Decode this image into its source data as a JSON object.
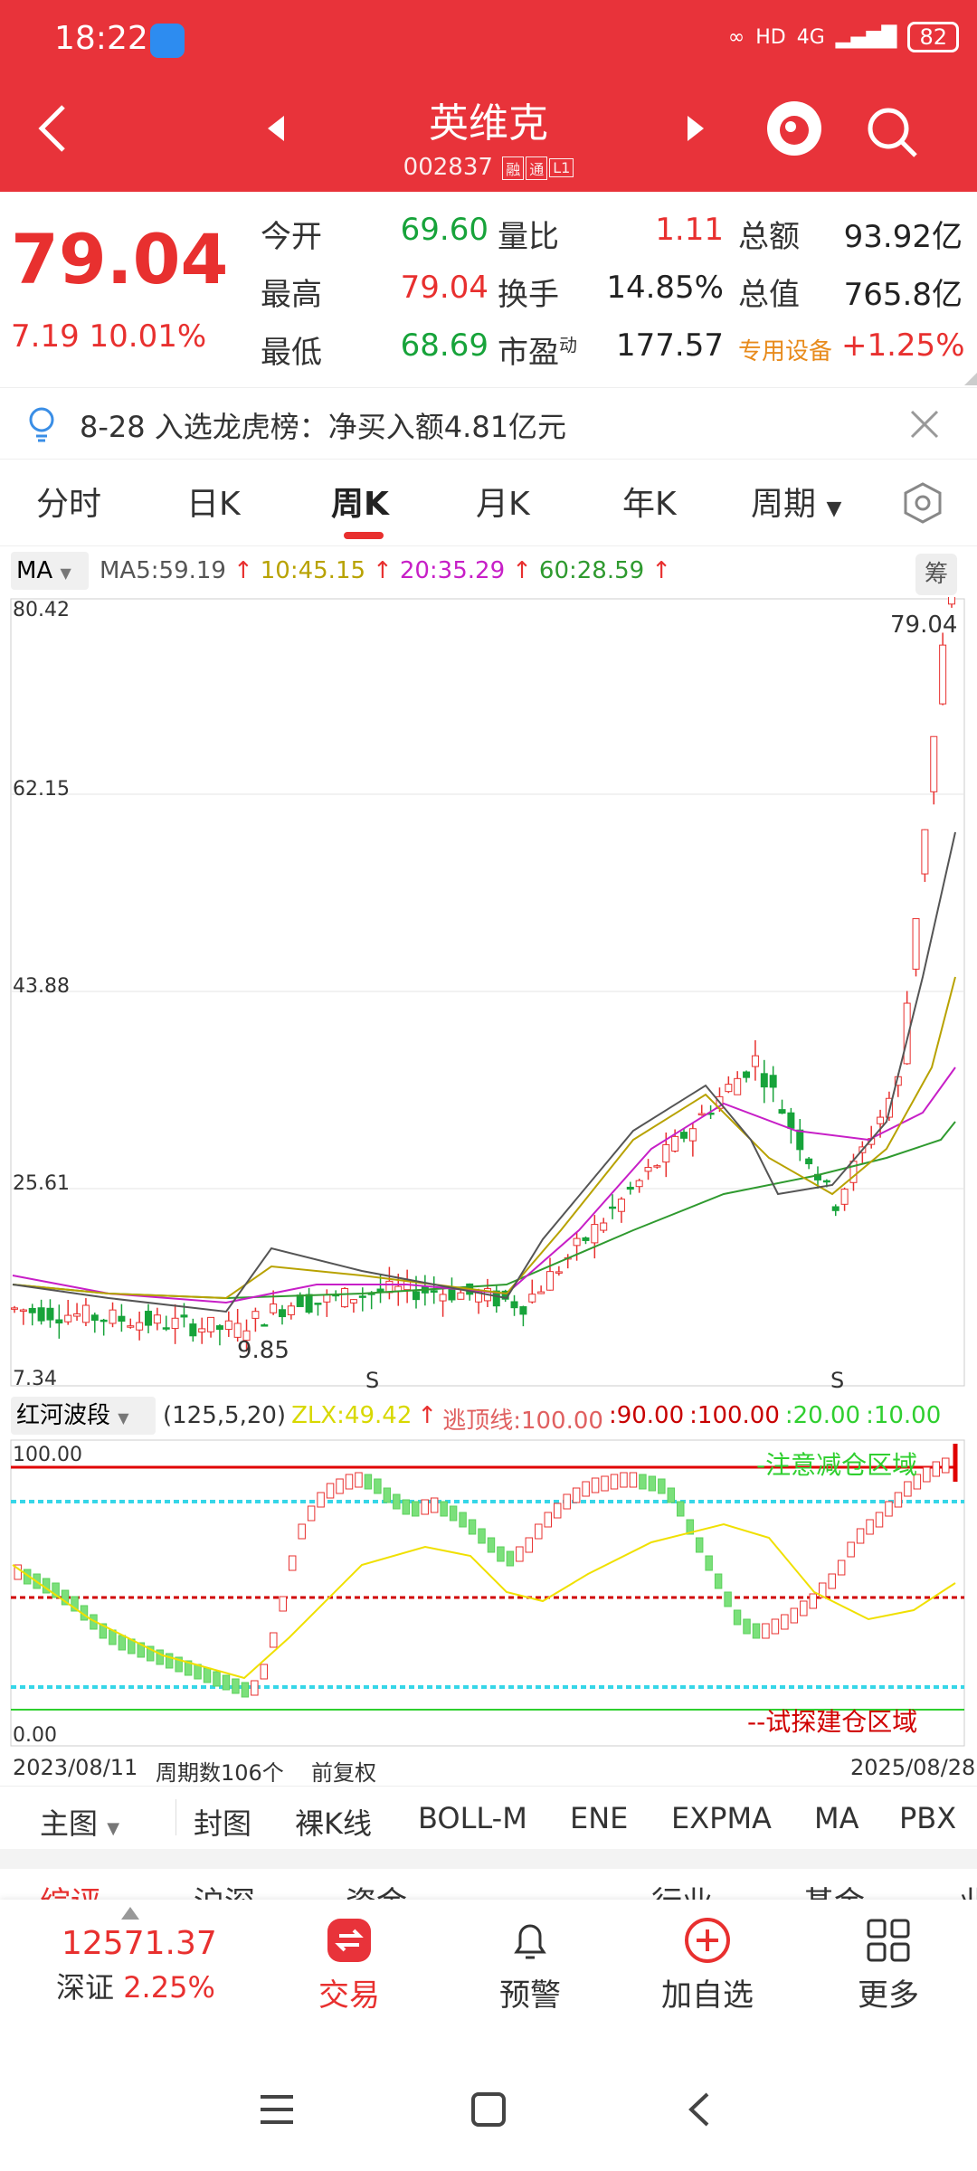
{
  "status": {
    "time": "18:22",
    "network": "4G",
    "battery": "82"
  },
  "header": {
    "stock_name": "英维克",
    "stock_code": "002837",
    "tag1": "融",
    "tag2": "通",
    "tag3": "L1"
  },
  "quote": {
    "price": "79.04",
    "change": "7.19",
    "change_pct": "10.01%",
    "open_label": "今开",
    "open": "69.60",
    "high_label": "最高",
    "high": "79.04",
    "low_label": "最低",
    "low": "68.69",
    "vol_ratio_label": "量比",
    "vol_ratio": "1.11",
    "turnover_label": "换手",
    "turnover": "14.85%",
    "pe_label": "市盈",
    "pe_sup": "动",
    "pe": "177.57",
    "amount_label": "总额",
    "amount": "93.92亿",
    "mktcap_label": "总值",
    "mktcap": "765.8亿",
    "sector": "专用设备",
    "sector_change": "+1.25%"
  },
  "notice": {
    "text": "8-28 入选龙虎榜：净买入额4.81亿元"
  },
  "tabs": [
    "分时",
    "日K",
    "周K",
    "月K",
    "年K",
    "周期"
  ],
  "ma": {
    "select": "MA",
    "ma5": "MA5:59.19",
    "ma10": "10:45.15",
    "ma20": "20:35.29",
    "ma60": "60:28.59",
    "calc": "筹"
  },
  "kline_axis": {
    "y1": "80.42",
    "y2": "62.15",
    "y3": "43.88",
    "y4": "25.61",
    "y5": "7.34",
    "high_label": "79.04",
    "low_label": "9.85",
    "s_mark": "S"
  },
  "chart_data": {
    "type": "candlestick",
    "series": [
      {
        "name": "MA5",
        "values": [
          59.19
        ]
      },
      {
        "name": "10",
        "values": [
          45.15
        ]
      },
      {
        "name": "20",
        "values": [
          35.29
        ]
      },
      {
        "name": "60",
        "values": [
          28.59
        ]
      }
    ],
    "ylim": [
      7.34,
      80.42
    ],
    "last_close": 79.04,
    "period_low": 9.85,
    "x_start": "2023/08/11",
    "x_end": "2025/08/28"
  },
  "indicator": {
    "select": "红河波段",
    "params": "(125,5,20)",
    "zlx": "ZLX:49.42",
    "escape": "逃顶线:100.00",
    "v1": ":90.00",
    "v2": ":100.00",
    "v3": ":20.00",
    "v4": ":10.00",
    "y_top": "100.00",
    "y_bottom": "0.00",
    "warn_label": "-注意减仓区域",
    "buy_label": "--试探建仓区域"
  },
  "dates": {
    "start": "2023/08/11",
    "periods": "周期数106个",
    "adj": "前复权",
    "end": "2025/08/28"
  },
  "ind_tabs": [
    "主图",
    "封图",
    "裸K线",
    "BOLL-M",
    "ENE",
    "EXPMA",
    "MA",
    "PBX"
  ],
  "peek": [
    "综评",
    "沪深",
    "资金",
    "行业",
    "基金",
    "业"
  ],
  "bottom_nav": {
    "index_value": "12571.37",
    "index_name": "深证",
    "index_pct": "2.25%",
    "trade": "交易",
    "alert": "预警",
    "add": "加自选",
    "more": "更多"
  },
  "colors": {
    "red": "#e8302f",
    "green": "#17a33a",
    "ma5": "#555555",
    "ma10": "#b8a200",
    "ma20": "#c71fc7",
    "ma60": "#2f9a2f"
  }
}
